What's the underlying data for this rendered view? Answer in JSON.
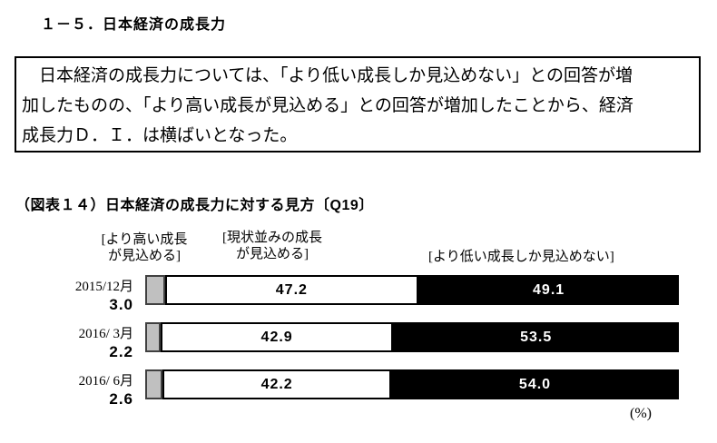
{
  "section_title": "１－５．日本経済の成長力",
  "summary_box": {
    "lines": [
      "　日本経済の成長力については、「より低い成長しか見込めない」との回答が増",
      "加したものの、「より高い成長が見込める」との回答が増加したことから、経済",
      "成長力Ｄ．Ｉ．は横ばいとなった。"
    ]
  },
  "figure": {
    "title": "（図表１４）日本経済の成長力に対する見方〔Q19〕",
    "legend": {
      "high": [
        "[より高い成長",
        "が見込める]"
      ],
      "same": [
        "[現状並みの成長",
        "が見込める]"
      ],
      "low": "[より低い成長しか見込めない]"
    },
    "rows": [
      {
        "period": "2015/12月",
        "high": "3.0",
        "same": "47.2",
        "low": "49.1"
      },
      {
        "period": "2016/ 3月",
        "high": "2.2",
        "same": "42.9",
        "low": "53.5"
      },
      {
        "period": "2016/ 6月",
        "high": "2.6",
        "same": "42.2",
        "low": "54.0"
      }
    ],
    "unit_label": "(%)"
  },
  "chart_data": {
    "type": "bar",
    "stacked": true,
    "orientation": "horizontal",
    "title": "日本経済の成長力に対する見方〔Q19〕",
    "categories": [
      "2015/12月",
      "2016/3月",
      "2016/6月"
    ],
    "series": [
      {
        "name": "より高い成長が見込める",
        "values": [
          3.0,
          2.2,
          2.6
        ],
        "color": "#c0c0c0"
      },
      {
        "name": "現状並みの成長が見込める",
        "values": [
          47.2,
          42.9,
          42.2
        ],
        "color": "#ffffff"
      },
      {
        "name": "より低い成長しか見込めない",
        "values": [
          49.1,
          53.5,
          54.0
        ],
        "color": "#000000"
      }
    ],
    "unit": "%",
    "legend_position": "top",
    "grid": false
  }
}
